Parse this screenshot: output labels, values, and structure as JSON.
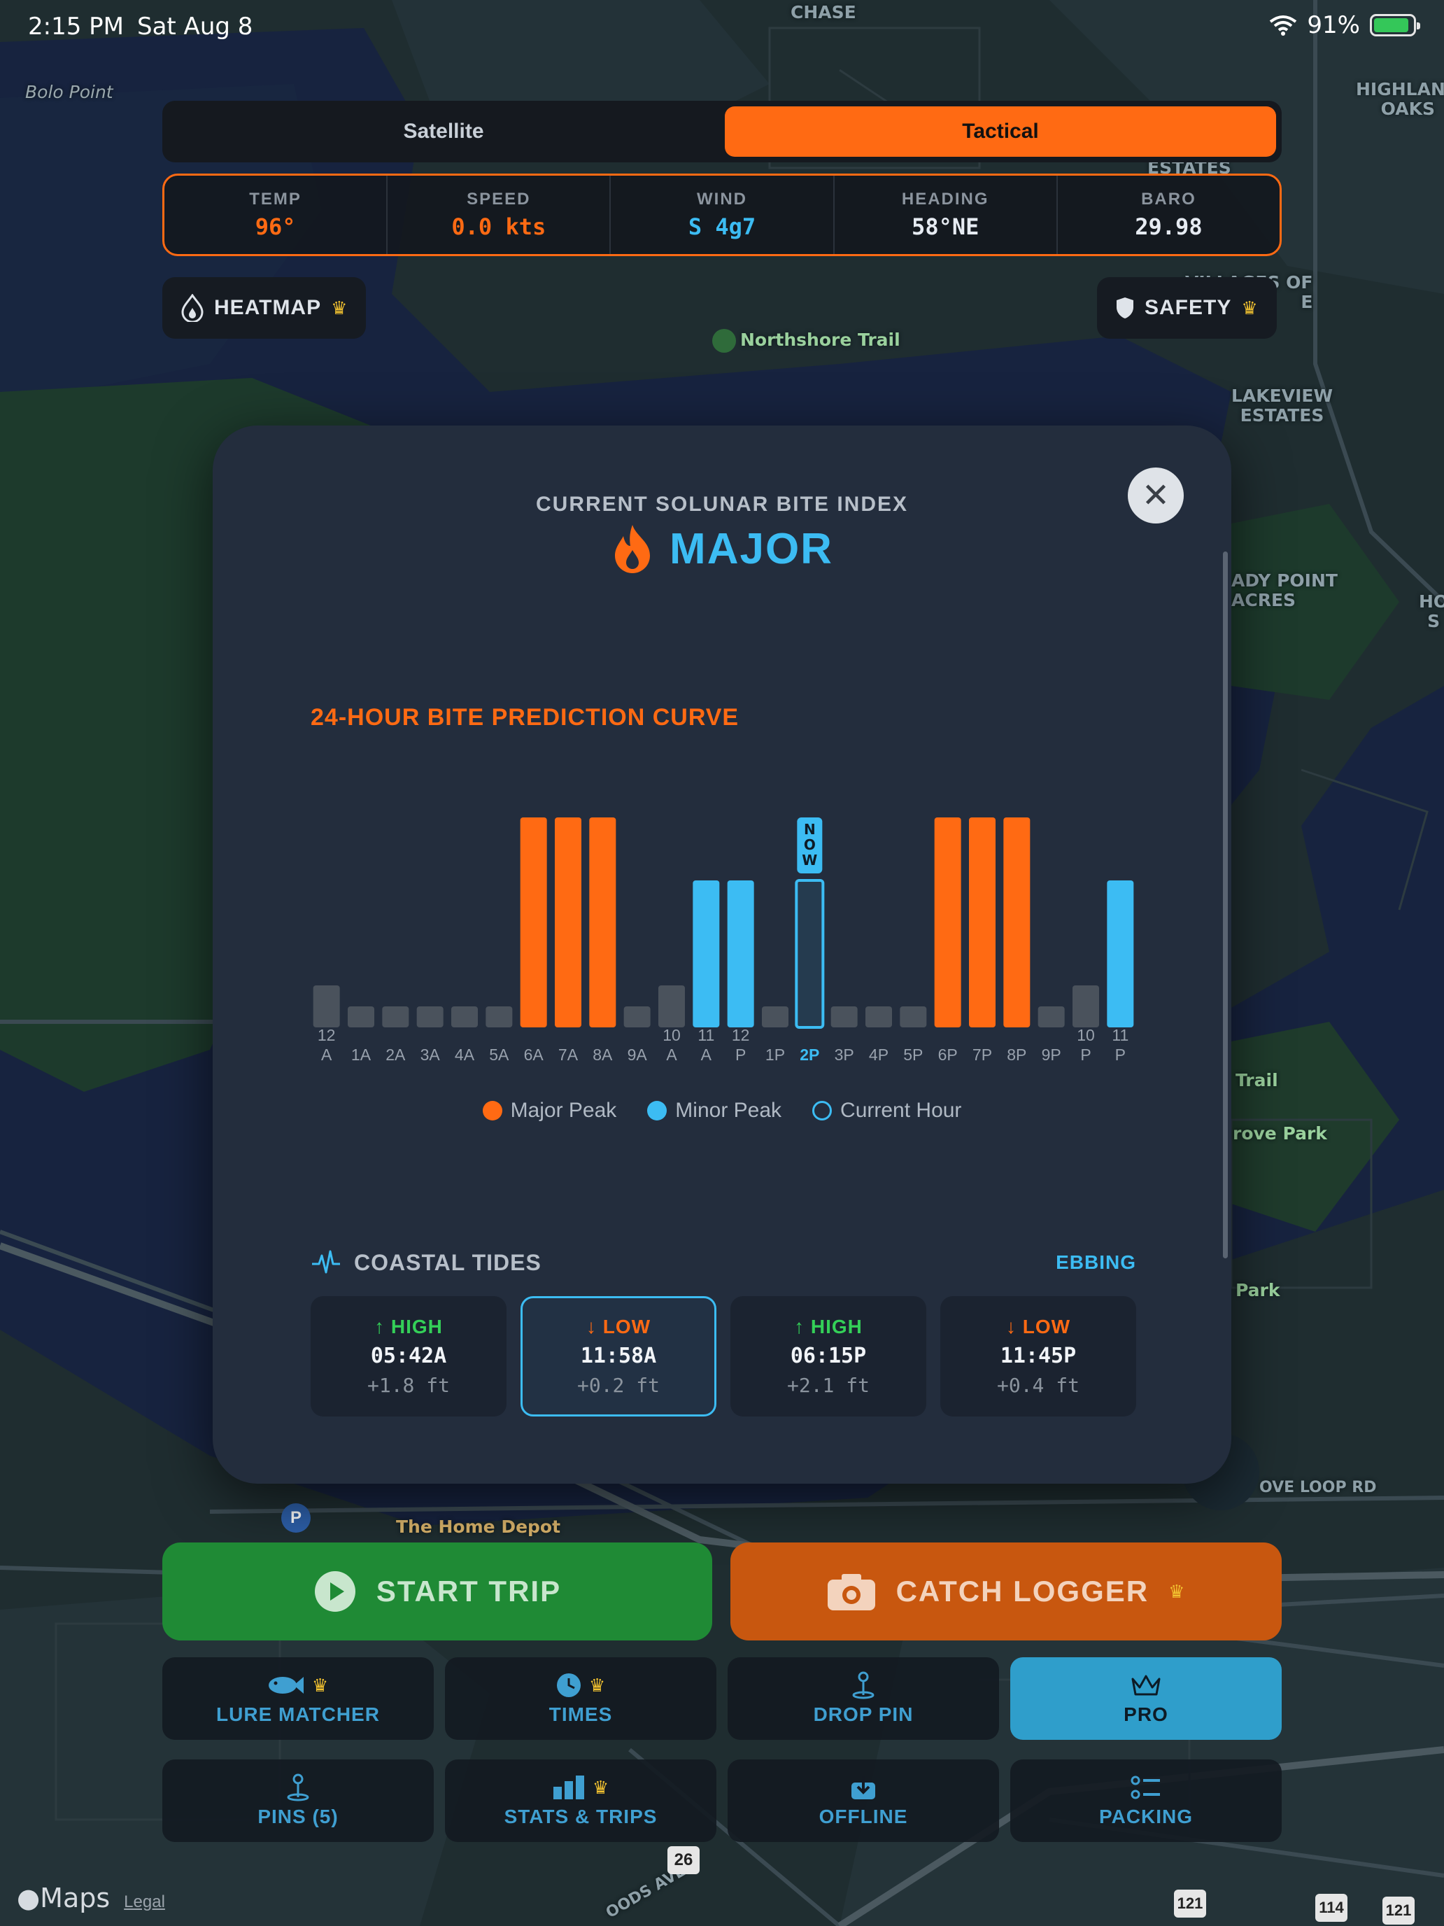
{
  "status_bar": {
    "time": "2:15 PM",
    "date": "Sat Aug 8",
    "battery": "91%",
    "battery_level": 0.91
  },
  "map_mode": {
    "options": [
      "Satellite",
      "Tactical"
    ],
    "selected": "Tactical"
  },
  "telemetry": [
    {
      "label": "TEMP",
      "value": "96°",
      "color": "#ff6a13"
    },
    {
      "label": "SPEED",
      "value": "0.0 kts",
      "color": "#ff6a13"
    },
    {
      "label": "WIND",
      "value": "S 4g7",
      "color": "#3cbcf3"
    },
    {
      "label": "HEADING",
      "value": "58°NE",
      "color": "#e6ebf2"
    },
    {
      "label": "BARO",
      "value": "29.98",
      "color": "#e6ebf2"
    }
  ],
  "overlay_buttons": {
    "heatmap": "HEATMAP",
    "safety": "SAFETY"
  },
  "map_labels": {
    "bolo_point": "Bolo Point",
    "north_chase": "CHASE",
    "highland_oaks": "HIGHLAND\nOAKS",
    "estates_top": "ESTATES",
    "villages_of": "VILLAGES OF\nE",
    "northshore_trail": "Northshore Trail",
    "lakeview_estates": "LAKEVIEW\nESTATES",
    "shady_point": "ADY POINT\nACRES",
    "ho": "HO\nS",
    "trail": "Trail",
    "grove_park": "rove Park",
    "park": "Park",
    "grove_loop": "OVE LOOP RD",
    "home_depot": "The Home Depot",
    "woods_ave": "OODS AVE",
    "hwy_26": "26",
    "hwy_121_a": "121",
    "hwy_114": "114",
    "hwy_121_b": "121"
  },
  "modal": {
    "close_icon": "close-icon",
    "bite_index_label": "CURRENT SOLUNAR BITE INDEX",
    "bite_index_value": "MAJOR",
    "chart_title": "24-HOUR BITE PREDICTION CURVE",
    "now_label": "NOW",
    "legend": {
      "major": "Major Peak",
      "minor": "Minor Peak",
      "current": "Current Hour"
    },
    "tides": {
      "title": "COASTAL TIDES",
      "state": "EBBING",
      "entries": [
        {
          "type": "HIGH",
          "arrow": "↑",
          "time": "05:42A",
          "height": "+1.8 ft",
          "color": "#34d058",
          "current": false
        },
        {
          "type": "LOW",
          "arrow": "↓",
          "time": "11:58A",
          "height": "+0.2 ft",
          "color": "#ff6a13",
          "current": true
        },
        {
          "type": "HIGH",
          "arrow": "↑",
          "time": "06:15P",
          "height": "+2.1 ft",
          "color": "#34d058",
          "current": false
        },
        {
          "type": "LOW",
          "arrow": "↓",
          "time": "11:45P",
          "height": "+0.4 ft",
          "color": "#ff6a13",
          "current": false
        }
      ]
    }
  },
  "chart_data": {
    "type": "bar",
    "title": "24-HOUR BITE PREDICTION CURVE",
    "categories": [
      "12\nA",
      "1A",
      "2A",
      "3A",
      "4A",
      "5A",
      "6A",
      "7A",
      "8A",
      "9A",
      "10\nA",
      "11\nA",
      "12\nP",
      "1P",
      "2P",
      "3P",
      "4P",
      "5P",
      "6P",
      "7P",
      "8P",
      "9P",
      "10\nP",
      "11\nP"
    ],
    "values": [
      2,
      1,
      1,
      1,
      1,
      1,
      10,
      10,
      10,
      1,
      2,
      7,
      7,
      1,
      7,
      1,
      1,
      1,
      10,
      10,
      10,
      1,
      2,
      7
    ],
    "classes": [
      "none",
      "none",
      "none",
      "none",
      "none",
      "none",
      "major",
      "major",
      "major",
      "none",
      "none",
      "minor",
      "minor",
      "none",
      "current",
      "none",
      "none",
      "none",
      "major",
      "major",
      "major",
      "none",
      "none",
      "minor"
    ],
    "ylim": [
      0,
      10
    ],
    "current_index": 14,
    "colors": {
      "major": "#ff6a13",
      "minor": "#3cbcf3",
      "none": "#4a525c",
      "current": "#3cbcf3"
    }
  },
  "actions": {
    "start_trip": "START TRIP",
    "catch_logger": "CATCH LOGGER",
    "grid": [
      {
        "key": "lure_matcher",
        "label": "LURE MATCHER",
        "icon": "fish-icon",
        "crown": true
      },
      {
        "key": "times",
        "label": "TIMES",
        "icon": "clock-icon",
        "crown": true
      },
      {
        "key": "drop_pin",
        "label": "DROP PIN",
        "icon": "pin-icon",
        "crown": false
      },
      {
        "key": "pro",
        "label": "PRO",
        "icon": "crown-icon",
        "crown": false
      },
      {
        "key": "pins",
        "label": "PINS (5)",
        "icon": "pin-icon",
        "crown": false
      },
      {
        "key": "stats_trips",
        "label": "STATS & TRIPS",
        "icon": "bar-chart-icon",
        "crown": true
      },
      {
        "key": "offline",
        "label": "OFFLINE",
        "icon": "download-icon",
        "crown": false
      },
      {
        "key": "packing",
        "label": "PACKING",
        "icon": "checklist-icon",
        "crown": false
      }
    ]
  },
  "attribution": {
    "maps": "Maps",
    "legal": "Legal"
  }
}
